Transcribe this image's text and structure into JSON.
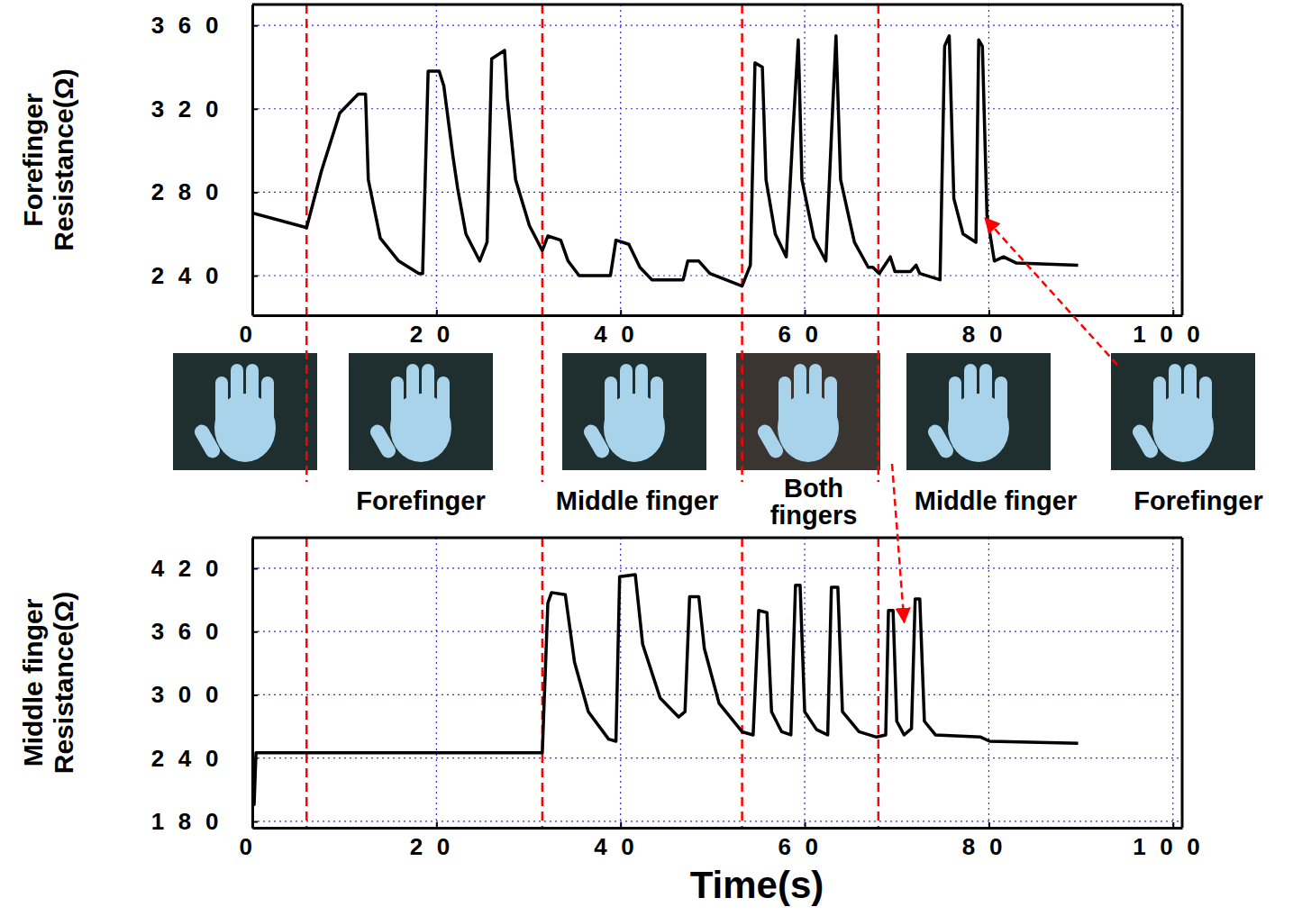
{
  "chart_data": [
    {
      "type": "line",
      "y_label": "Forefinger Resistance(Ω)",
      "color": "#000000",
      "grid": true,
      "xlim": [
        0,
        101
      ],
      "xticks": [
        0,
        20,
        40,
        60,
        80,
        100
      ],
      "ylim": [
        221,
        370
      ],
      "yticks": [
        240,
        280,
        320,
        360
      ],
      "event_lines": [
        5.9,
        31.5,
        53.2,
        68
      ],
      "arrow_to": {
        "x": 79.6,
        "y": 267.5
      },
      "x": [
        0,
        5.9,
        7.5,
        9.5,
        11.5,
        12.3,
        12.6,
        13.9,
        15.9,
        18.1,
        18.5,
        19.1,
        20.3,
        20.8,
        21.8,
        22.3,
        23.2,
        24.7,
        25.5,
        26,
        27.4,
        27.7,
        28.6,
        30.1,
        31.5,
        32.1,
        33.5,
        34.3,
        35.5,
        38.9,
        39.5,
        40.9,
        42.1,
        43.4,
        46.8,
        47.3,
        48.5,
        49.7,
        53.2,
        54.1,
        54.6,
        55.4,
        55.8,
        56.8,
        58,
        58.7,
        59.3,
        59.7,
        61,
        62.3,
        62.9,
        63.4,
        63.9,
        65.4,
        66.9,
        67.4,
        68.1,
        69.3,
        69.8,
        71.5,
        72.1,
        72.5,
        74.7,
        75.2,
        75.7,
        76.2,
        77.2,
        78.6,
        78.9,
        79.3,
        79.8,
        80.6,
        81.6,
        83,
        89.7
      ],
      "values": [
        270,
        263,
        290,
        318,
        327,
        327,
        286,
        258,
        247,
        241,
        241,
        338,
        338,
        331,
        297,
        282,
        260,
        247,
        256,
        344,
        348,
        325,
        286,
        264,
        252,
        259,
        257,
        247,
        240,
        240,
        257,
        255,
        244,
        238,
        238,
        247,
        247,
        241,
        235,
        245,
        342,
        340,
        286,
        260,
        249,
        307,
        353,
        286,
        258,
        247,
        307,
        355,
        286,
        256,
        244,
        244,
        241,
        249,
        242,
        242,
        245,
        241,
        238,
        350,
        355,
        277,
        260,
        256,
        353,
        350,
        269,
        247,
        249,
        246,
        245
      ]
    },
    {
      "type": "line",
      "y_label": "Middle finger Resistance(Ω)",
      "x_label": "Time(s)",
      "color": "#000000",
      "grid": true,
      "xlim": [
        0,
        101
      ],
      "xticks": [
        0,
        20,
        40,
        60,
        80,
        100
      ],
      "ylim": [
        174,
        449
      ],
      "yticks": [
        180,
        240,
        300,
        360,
        420
      ],
      "event_lines": [
        5.9,
        31.5,
        53.2,
        68
      ],
      "arrow_to": {
        "x": 70.8,
        "y": 369
      },
      "x": [
        0,
        0.2,
        0.4,
        31.5,
        32.1,
        32.5,
        34,
        35,
        36.5,
        38.7,
        39.5,
        39.9,
        41.6,
        42.4,
        44.3,
        46.3,
        47,
        47.5,
        48.5,
        49.1,
        50.7,
        53.2,
        54.4,
        55,
        55.9,
        56.4,
        57.5,
        58.5,
        59,
        59.5,
        60,
        61.3,
        62.5,
        62.9,
        63.6,
        64.1,
        65.9,
        67.8,
        68.8,
        69.1,
        69.6,
        70,
        70.8,
        71.6,
        72,
        72.5,
        73,
        74.2,
        79.1,
        80.1,
        89.7
      ],
      "values": [
        245,
        196,
        245,
        245,
        387,
        397,
        395,
        331,
        284,
        258,
        256,
        412,
        414,
        348,
        297,
        279,
        284,
        393,
        393,
        344,
        292,
        265,
        262,
        380,
        378,
        284,
        265,
        262,
        404,
        404,
        284,
        267,
        262,
        402,
        402,
        284,
        265,
        260,
        262,
        380,
        380,
        275,
        262,
        268,
        391,
        391,
        275,
        262,
        260,
        256,
        254
      ]
    }
  ],
  "photo_captions": [
    null,
    "Forefinger",
    "Middle finger",
    "Both fingers",
    "Middle finger",
    "Forefinger"
  ]
}
